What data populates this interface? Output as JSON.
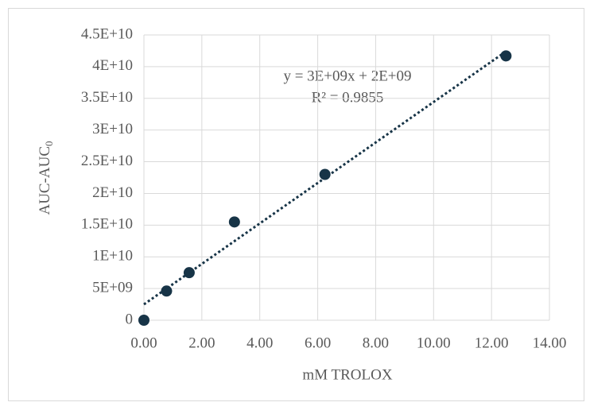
{
  "chart_data": {
    "type": "scatter",
    "x_label": "mM TROLOX",
    "y_label": "AUC-AUC",
    "y_label_subscript": "0",
    "annotations": [
      "y = 3E+09x + 2E+09",
      "R² = 0.9855"
    ],
    "series": [
      {
        "color": "#173447",
        "x": [
          0,
          0.78125,
          1.5625,
          3.125,
          6.25,
          12.5
        ],
        "values": [
          0,
          4600000000,
          7500000000,
          15500000000,
          23000000000,
          41700000000
        ]
      }
    ],
    "trendline": {
      "color": "#173447",
      "style": "dotted",
      "x": [
        0,
        12.5
      ],
      "values": [
        2500000000,
        42400000000
      ]
    },
    "xlim": [
      0,
      14
    ],
    "xticks": [
      {
        "value": 0,
        "label": "0.00"
      },
      {
        "value": 2,
        "label": "2.00"
      },
      {
        "value": 4,
        "label": "4.00"
      },
      {
        "value": 6,
        "label": "6.00"
      },
      {
        "value": 8,
        "label": "8.00"
      },
      {
        "value": 10,
        "label": "10.00"
      },
      {
        "value": 12,
        "label": "12.00"
      },
      {
        "value": 14,
        "label": "14.00"
      }
    ],
    "ylim": [
      0,
      45000000000
    ],
    "yticks": [
      0,
      {
        "value": 5000000000,
        "label": "5E+09"
      },
      {
        "value": 10000000000,
        "label": "1E+10"
      },
      {
        "value": 15000000000,
        "label": "1.5E+10"
      },
      {
        "value": 20000000000,
        "label": "2E+10"
      },
      {
        "value": 25000000000,
        "label": "2.5E+10"
      },
      {
        "value": 30000000000,
        "label": "3E+10"
      },
      {
        "value": 35000000000,
        "label": "3.5E+10"
      },
      {
        "value": 40000000000,
        "label": "4E+10"
      },
      {
        "value": 45000000000,
        "label": "4.5E+10"
      }
    ],
    "grid": true
  }
}
